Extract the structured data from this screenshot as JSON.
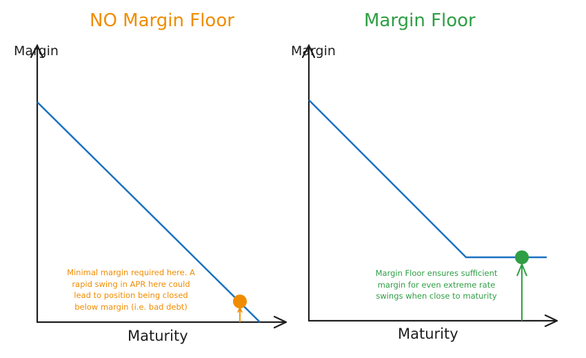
{
  "colors": {
    "orange": "#f08c00",
    "green": "#2f9e44",
    "blue": "#1971c2",
    "ink": "#1e1e1e"
  },
  "left": {
    "title": "NO Margin Floor",
    "y_label": "Margin",
    "x_label": "Maturity",
    "note": [
      "Minimal margin required here. A",
      "rapid swing in APR here could",
      "lead to position being closed",
      "below margin (i.e. bad debt)"
    ]
  },
  "right": {
    "title": "Margin Floor",
    "y_label": "Margin",
    "x_label": "Maturity",
    "note": [
      "Margin Floor ensures sufficient",
      "margin for even extreme rate",
      "swings when close to maturity"
    ]
  }
}
